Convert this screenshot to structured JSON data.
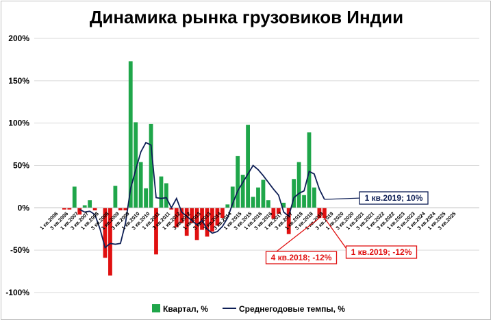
{
  "chart_data": {
    "type": "bar+line",
    "title": "Динамика рынка грузовиков Индии",
    "y_ticks": [
      "200%",
      "150%",
      "100%",
      "50%",
      "0%",
      "-50%",
      "-100%"
    ],
    "ylim": [
      -100,
      200
    ],
    "grid": "horizontal",
    "legend_position": "bottom",
    "x_labels": [
      "1 кв.2006",
      "3 кв.2006",
      "1 кв.2007",
      "3 кв.2007",
      "1 кв.2008",
      "3 кв.2008",
      "1 кв.2009",
      "3 кв.2009",
      "1 кв.2010",
      "3 кв.2010",
      "1 кв.2011",
      "3 кв.2011",
      "1 кв.2012",
      "3 кв.2012",
      "1 кв.2013",
      "3 кв.2013",
      "1 кв.2014",
      "3 кв.2014",
      "1 кв.2015",
      "3 кв.2015",
      "1 кв.2016",
      "3 кв.2016",
      "1 кв.2017",
      "3 кв.2017",
      "1 кв.2018",
      "3 кв.2018",
      "1 кв.2019",
      "3 кв.2019",
      "1 кв.2020",
      "3 кв.2020",
      "1 кв.2021",
      "3 кв.2021",
      "1 кв.2022",
      "3 кв.2022",
      "1 кв.2023",
      "3 кв.2023",
      "1 кв.2024",
      "3 кв.2024",
      "1 кв.2025",
      "3 кв.2025"
    ],
    "series": [
      {
        "name": "Квартал, %",
        "type": "bar",
        "color_positive": "#1fa64a",
        "color_negative": "#e01010",
        "values": [
          0,
          0,
          -2,
          -2,
          25,
          -8,
          3,
          9,
          -3,
          0,
          -59,
          -80,
          26,
          -3,
          -3,
          173,
          101,
          54,
          23,
          99,
          -55,
          37,
          29,
          -2,
          -23,
          -18,
          -33,
          -18,
          -38,
          -26,
          -34,
          -28,
          -21,
          -12,
          4,
          25,
          61,
          39,
          98,
          13,
          24,
          33,
          9,
          -13,
          -7,
          6,
          -31,
          34,
          54,
          15,
          89,
          24,
          -12,
          -12
        ]
      },
      {
        "name": "Среднегодовые темпы, %",
        "type": "line",
        "color": "#0d1e55",
        "values": [
          null,
          null,
          null,
          null,
          null,
          -2,
          -5,
          -4,
          -8,
          -25,
          -47,
          -42,
          -43,
          -42,
          -18,
          23,
          45,
          66,
          77,
          74,
          12,
          11,
          12,
          0,
          11,
          -5,
          -10,
          -15,
          -20,
          -15,
          -25,
          -30,
          -28,
          -22,
          -12,
          5,
          20,
          30,
          40,
          50,
          45,
          38,
          30,
          22,
          15,
          -5,
          -10,
          12,
          17,
          20,
          43,
          40,
          22,
          10
        ]
      }
    ],
    "annotations": [
      {
        "text": "1 кв.2019; 10%",
        "color": "#0d1e55"
      },
      {
        "text": "4 кв.2018; -12%",
        "color": "#e01010"
      },
      {
        "text": "1 кв.2019; -12%",
        "color": "#e01010"
      }
    ]
  }
}
